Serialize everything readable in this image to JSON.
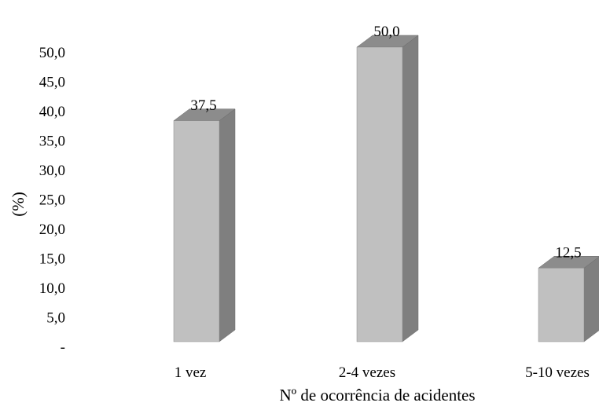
{
  "chart_data": {
    "type": "bar",
    "title": "",
    "xlabel": "Nº de ocorrência de acidentes",
    "ylabel": "(%)",
    "categories": [
      "1 vez",
      "2-4 vezes",
      "5-10 vezes"
    ],
    "values": [
      37.5,
      50.0,
      12.5
    ],
    "value_labels": [
      "37,5",
      "50,0",
      "12,5"
    ],
    "ylim": [
      0,
      50
    ],
    "yticks": [
      "-",
      "5,0",
      "10,0",
      "15,0",
      "20,0",
      "25,0",
      "30,0",
      "35,0",
      "40,0",
      "45,0",
      "50,0"
    ],
    "grid": false,
    "legend": "none",
    "bar_style": "3d",
    "colors": {
      "front": "#c0c0c0",
      "side": "#7f7f7f",
      "top": "#8c8c8c"
    }
  }
}
